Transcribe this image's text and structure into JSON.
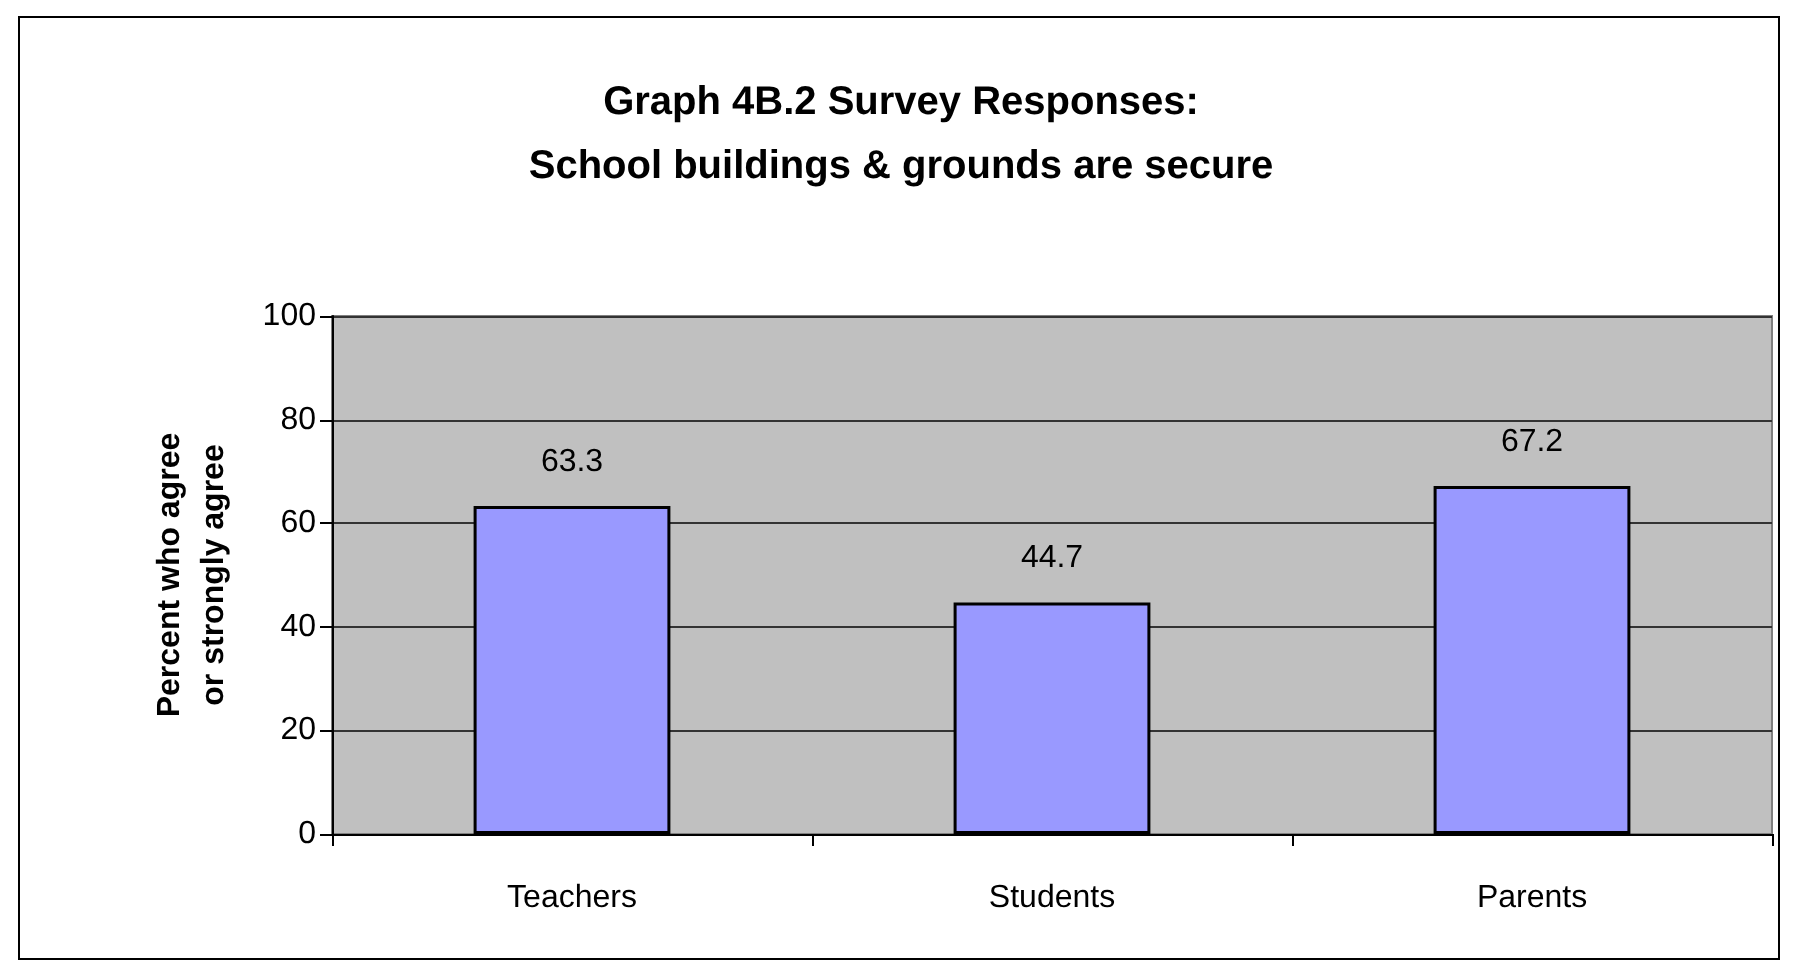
{
  "chart_data": {
    "type": "bar",
    "title": "Graph 4B.2 Survey Responses:\nSchool buildings & grounds are secure",
    "ylabel": "Percent who agree\nor strongly agree",
    "categories": [
      "Teachers",
      "Students",
      "Parents"
    ],
    "values": [
      63.3,
      44.7,
      67.2
    ],
    "color": "#9999ff",
    "ylim": [
      0,
      100
    ],
    "yticks": [
      0,
      20,
      40,
      60,
      80,
      100
    ],
    "grid": "y",
    "data_labels": true
  }
}
